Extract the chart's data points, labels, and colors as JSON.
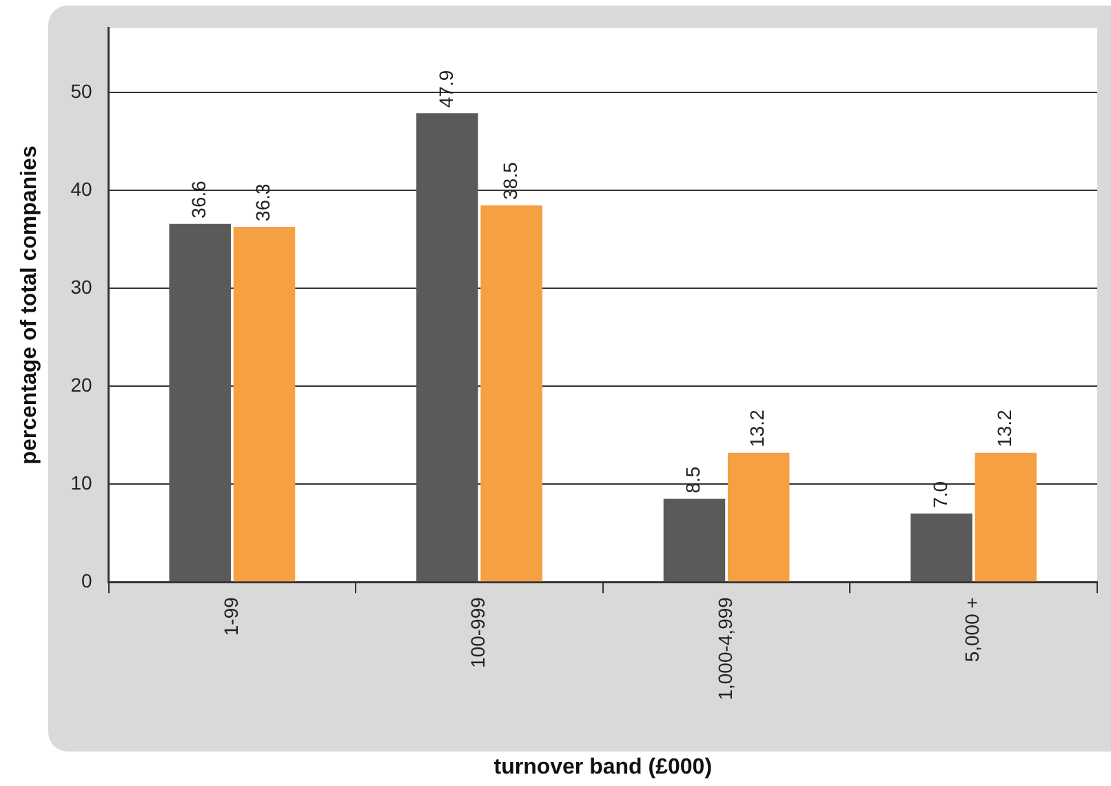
{
  "chart_data": {
    "type": "bar",
    "xlabel": "turnover band (£000)",
    "ylabel": "percentage of total companies",
    "categories": [
      "1-99",
      "100-999",
      "1,000-4,999",
      "5,000 +"
    ],
    "series": [
      {
        "color": "#5a5a5a",
        "values": [
          36.6,
          47.9,
          8.5,
          7.0
        ],
        "value_labels": [
          "36.6",
          "47.9",
          "8.5",
          "7.0"
        ]
      },
      {
        "color": "#f5a043",
        "values": [
          36.3,
          38.5,
          13.2,
          13.2
        ],
        "value_labels": [
          "36.3",
          "38.5",
          "13.2",
          "13.2"
        ]
      }
    ],
    "ylim": [
      0,
      56.6
    ],
    "yticks": [
      0,
      10,
      20,
      30,
      40,
      50
    ],
    "grid": "y",
    "legend": false
  }
}
